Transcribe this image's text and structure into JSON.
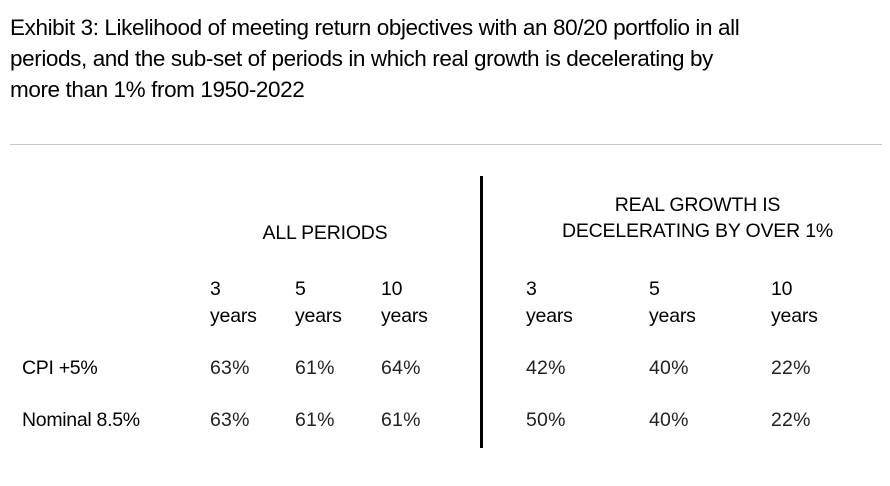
{
  "exhibit": {
    "title_lines": [
      "Exhibit 3: Likelihood of meeting return objectives with an 80/20 portfolio in all",
      "periods, and the sub-set of periods in which real growth is decelerating by",
      "more than 1% from 1950-2022"
    ]
  },
  "table": {
    "groups": [
      {
        "lines": [
          "ALL PERIODS"
        ]
      },
      {
        "lines": [
          "REAL GROWTH IS",
          "DECELERATING BY OVER 1%"
        ]
      }
    ],
    "columns": [
      {
        "num": "3",
        "unit": "years"
      },
      {
        "num": "5",
        "unit": "years"
      },
      {
        "num": "10",
        "unit": "years"
      },
      {
        "num": "3",
        "unit": "years"
      },
      {
        "num": "5",
        "unit": "years"
      },
      {
        "num": "10",
        "unit": "years"
      }
    ],
    "rows": [
      {
        "label": "CPI +5%",
        "values": [
          "63%",
          "61%",
          "64%",
          "42%",
          "40%",
          "22%"
        ]
      },
      {
        "label": "Nominal 8.5%",
        "values": [
          "63%",
          "61%",
          "61%",
          "50%",
          "40%",
          "22%"
        ]
      }
    ]
  }
}
